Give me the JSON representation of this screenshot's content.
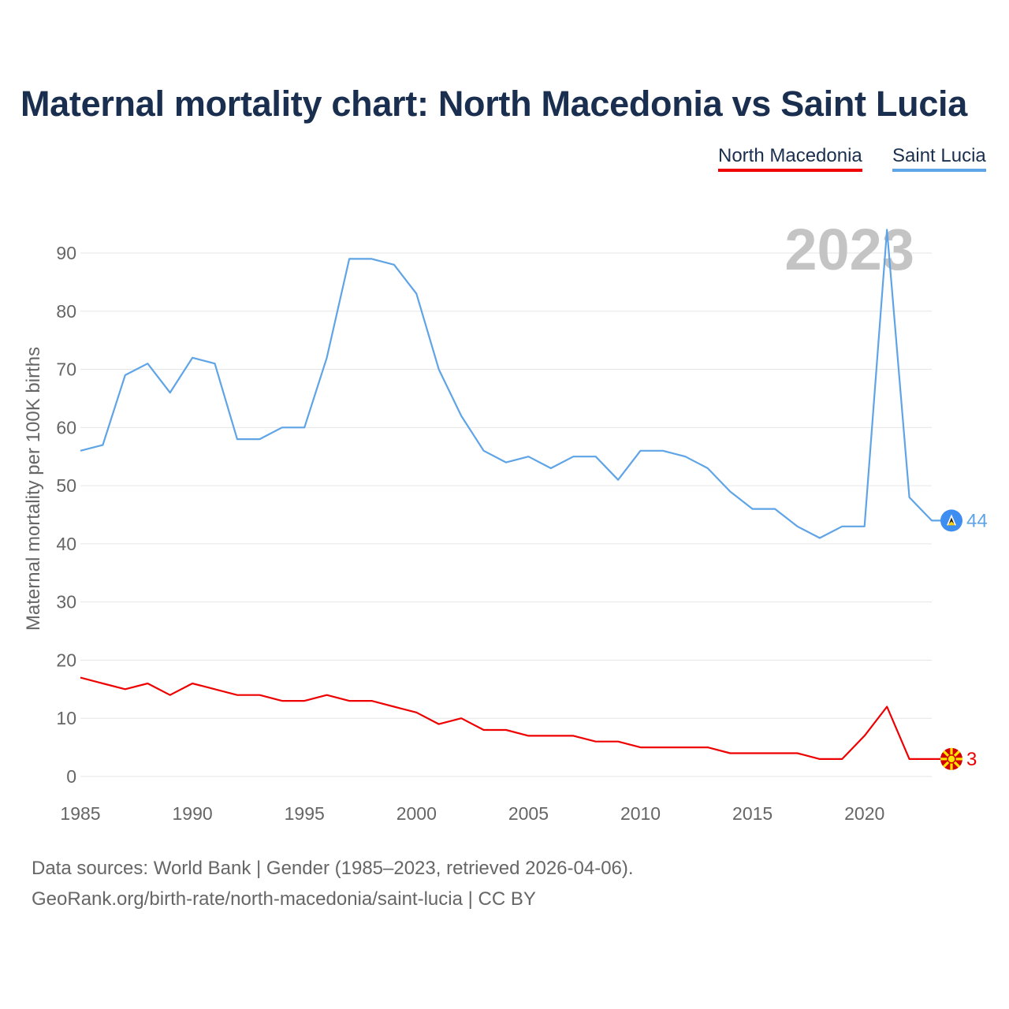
{
  "title": "Maternal mortality chart: North Macedonia vs Saint Lucia",
  "legend": [
    {
      "name": "North Macedonia",
      "color": "#ee0000"
    },
    {
      "name": "Saint Lucia",
      "color": "#5fa4e6"
    }
  ],
  "footer": {
    "source": "Data sources: World Bank | Gender (1985–2023, retrieved 2026-04-06).",
    "link": "GeoRank.org/birth-rate/north-macedonia/saint-lucia | CC BY"
  },
  "chart_data": {
    "type": "line",
    "title": "Maternal mortality chart: North Macedonia vs Saint Lucia",
    "ylabel": "Maternal mortality per 100K births",
    "xlabel": "",
    "year_label": "2023",
    "x": [
      1985,
      1986,
      1987,
      1988,
      1989,
      1990,
      1991,
      1992,
      1993,
      1994,
      1995,
      1996,
      1997,
      1998,
      1999,
      2000,
      2001,
      2002,
      2003,
      2004,
      2005,
      2006,
      2007,
      2008,
      2009,
      2010,
      2011,
      2012,
      2013,
      2014,
      2015,
      2016,
      2017,
      2018,
      2019,
      2020,
      2021,
      2022,
      2023
    ],
    "xlim": [
      1985,
      2023
    ],
    "ylim": [
      0,
      90
    ],
    "xticks": [
      1985,
      1990,
      1995,
      2000,
      2005,
      2010,
      2015,
      2020
    ],
    "yticks": [
      0,
      10,
      20,
      30,
      40,
      50,
      60,
      70,
      80,
      90
    ],
    "grid": true,
    "legend_position": "top-right",
    "series": [
      {
        "name": "North Macedonia",
        "color": "#ee0000",
        "end_label": "3",
        "flag_icon": "north-macedonia-flag-icon",
        "values": [
          17,
          16,
          15,
          16,
          14,
          16,
          15,
          14,
          14,
          13,
          13,
          14,
          13,
          13,
          12,
          11,
          9,
          10,
          8,
          8,
          7,
          7,
          7,
          6,
          6,
          5,
          5,
          5,
          5,
          4,
          4,
          4,
          4,
          3,
          3,
          7,
          12,
          3,
          3
        ]
      },
      {
        "name": "Saint Lucia",
        "color": "#5fa4e6",
        "end_label": "44",
        "flag_icon": "saint-lucia-flag-icon",
        "values": [
          56,
          57,
          69,
          71,
          66,
          72,
          71,
          58,
          58,
          60,
          60,
          72,
          89,
          89,
          88,
          83,
          70,
          62,
          56,
          54,
          55,
          53,
          55,
          55,
          51,
          56,
          56,
          55,
          53,
          49,
          46,
          46,
          43,
          41,
          43,
          43,
          94,
          48,
          44
        ]
      }
    ]
  }
}
